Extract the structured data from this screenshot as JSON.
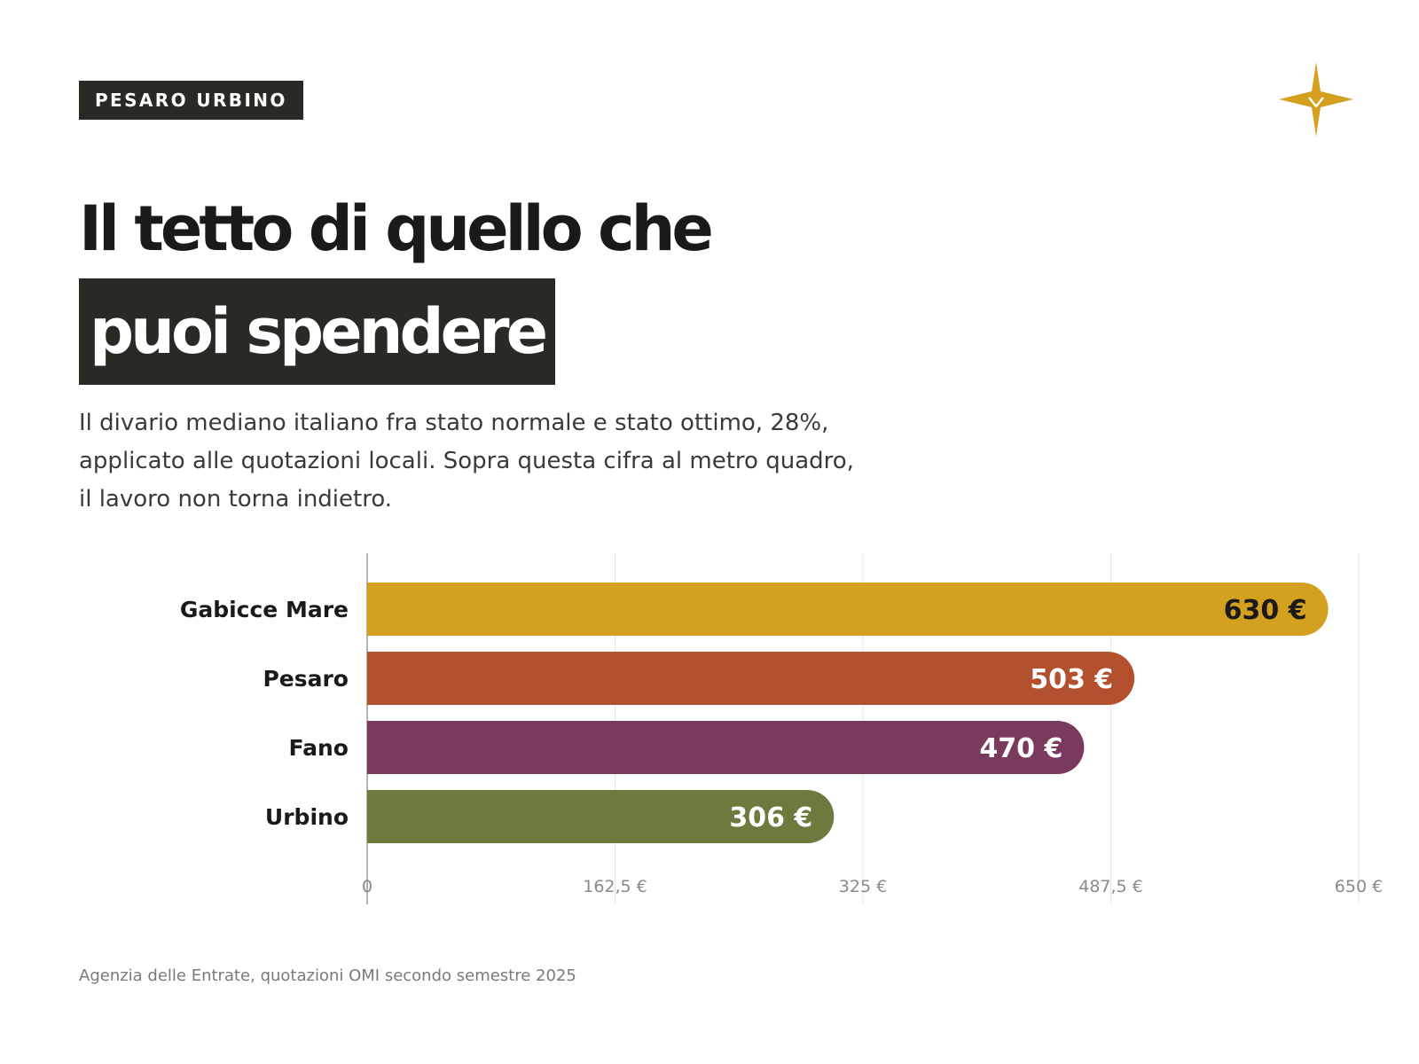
{
  "badge": "PESARO URBINO",
  "logo": {
    "icon": "gold-four-point-star-icon",
    "color": "#d4a020"
  },
  "headline": {
    "line1": "Il tetto di quello che",
    "line2": "puoi spendere"
  },
  "subtitle": "Il divario mediano italiano fra stato normale e stato ottimo, 28%, applicato alle quotazioni locali. Sopra questa cifra al metro quadro, il lavoro non torna indietro.",
  "source": "Agenzia delle Entrate, quotazioni OMI secondo semestre 2025",
  "colors": {
    "dark": "#2b2923",
    "gold": "#d4a020",
    "rust": "#b3512f",
    "plum": "#7a3a5e",
    "olive": "#6b7a3d"
  },
  "chart_data": {
    "type": "bar",
    "orientation": "horizontal",
    "categories": [
      "Gabicce Mare",
      "Pesaro",
      "Fano",
      "Urbino"
    ],
    "values": [
      630,
      503,
      470,
      306
    ],
    "value_labels": [
      "630 €",
      "503 €",
      "470 €",
      "306 €"
    ],
    "bar_colors": [
      "#d4a020",
      "#b3512f",
      "#7a3a5e",
      "#6b7a3d"
    ],
    "label_colors": [
      "#1a1a1a",
      "#ffffff",
      "#ffffff",
      "#ffffff"
    ],
    "xlim": [
      0,
      650
    ],
    "xticks": [
      0,
      162.5,
      325,
      487.5,
      650
    ],
    "xtick_labels": [
      "0",
      "162,5 €",
      "325 €",
      "487,5 €",
      "650 €"
    ],
    "grid": true,
    "legend": "none",
    "title": "",
    "xlabel": "",
    "ylabel": ""
  }
}
